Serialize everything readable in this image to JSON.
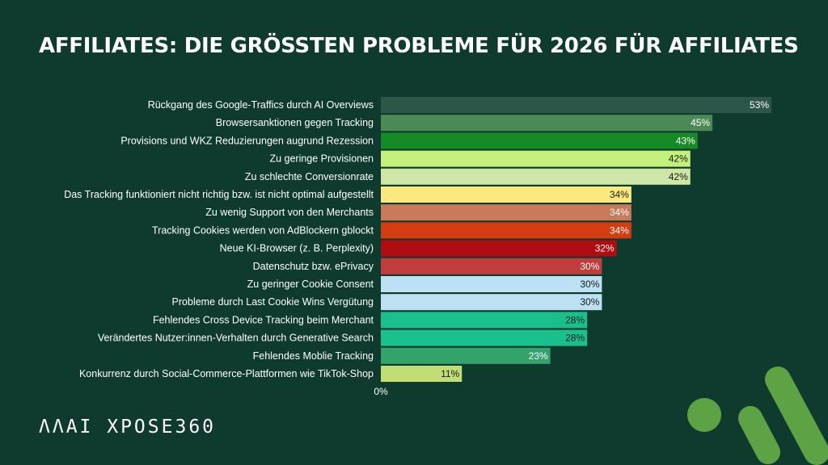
{
  "title": "AFFILIATES: DIE GRÖSSTEN PROBLEME FÜR 2026 FÜR AFFILIATES",
  "logo": "ΛΛΑΙ XPOSE360",
  "chart_data": {
    "type": "bar",
    "orientation": "horizontal",
    "title": "AFFILIATES: DIE GRÖSSTEN PROBLEME FÜR 2026 FÜR AFFILIATES",
    "xlabel": "",
    "ylabel": "",
    "xlim": [
      0,
      53
    ],
    "x_tick_labels": [
      "0%"
    ],
    "value_suffix": "%",
    "categories": [
      "Rückgang des Google-Traffics durch AI Overviews",
      "Browsersanktionen gegen Tracking",
      "Provisions und WKZ Reduzierungen augrund Rezession",
      "Zu geringe Provisionen",
      "Zu schlechte Conversionrate",
      "Das Tracking funktioniert nicht richtig bzw. ist nicht optimal aufgestellt",
      "Zu wenig Support von den Merchants",
      "Tracking Cookies werden von AdBlockern gblockt",
      "Neue KI-Browser (z. B. Perplexity)",
      "Datenschutz bzw. ePrivacy",
      "Zu geringer Cookie Consent",
      "Probleme durch Last Cookie Wins Vergütung",
      "Fehlendes Cross Device Tracking beim Merchant",
      "Verändertes Nutzer:innen-Verhalten durch Generative Search",
      "Fehlendes Moblie Tracking",
      "Konkurrenz durch Social-Commerce-Plattformen wie TikTok-Shop"
    ],
    "values": [
      53,
      45,
      43,
      42,
      42,
      34,
      34,
      34,
      32,
      30,
      30,
      30,
      28,
      28,
      23,
      11
    ],
    "colors": [
      "#2c5647",
      "#4b8a55",
      "#168a24",
      "#c4f07c",
      "#cfe7a6",
      "#fbe97e",
      "#c97a5a",
      "#d53d10",
      "#b10c0f",
      "#c13c3c",
      "#bde0f3",
      "#bde0f3",
      "#19c08b",
      "#19c08b",
      "#34a26b",
      "#c0de74"
    ],
    "label_colors": [
      "#ffffff",
      "#ffffff",
      "#ffffff",
      "#1a1a1a",
      "#1a1a1a",
      "#1a1a1a",
      "#ffffff",
      "#ffffff",
      "#ffffff",
      "#ffffff",
      "#1a1a1a",
      "#1a1a1a",
      "#1a1a1a",
      "#1a1a1a",
      "#ffffff",
      "#1a1a1a"
    ]
  },
  "colors": {
    "background": "#0e3b2e",
    "text": "#ffffff",
    "accent": "#5da346"
  }
}
